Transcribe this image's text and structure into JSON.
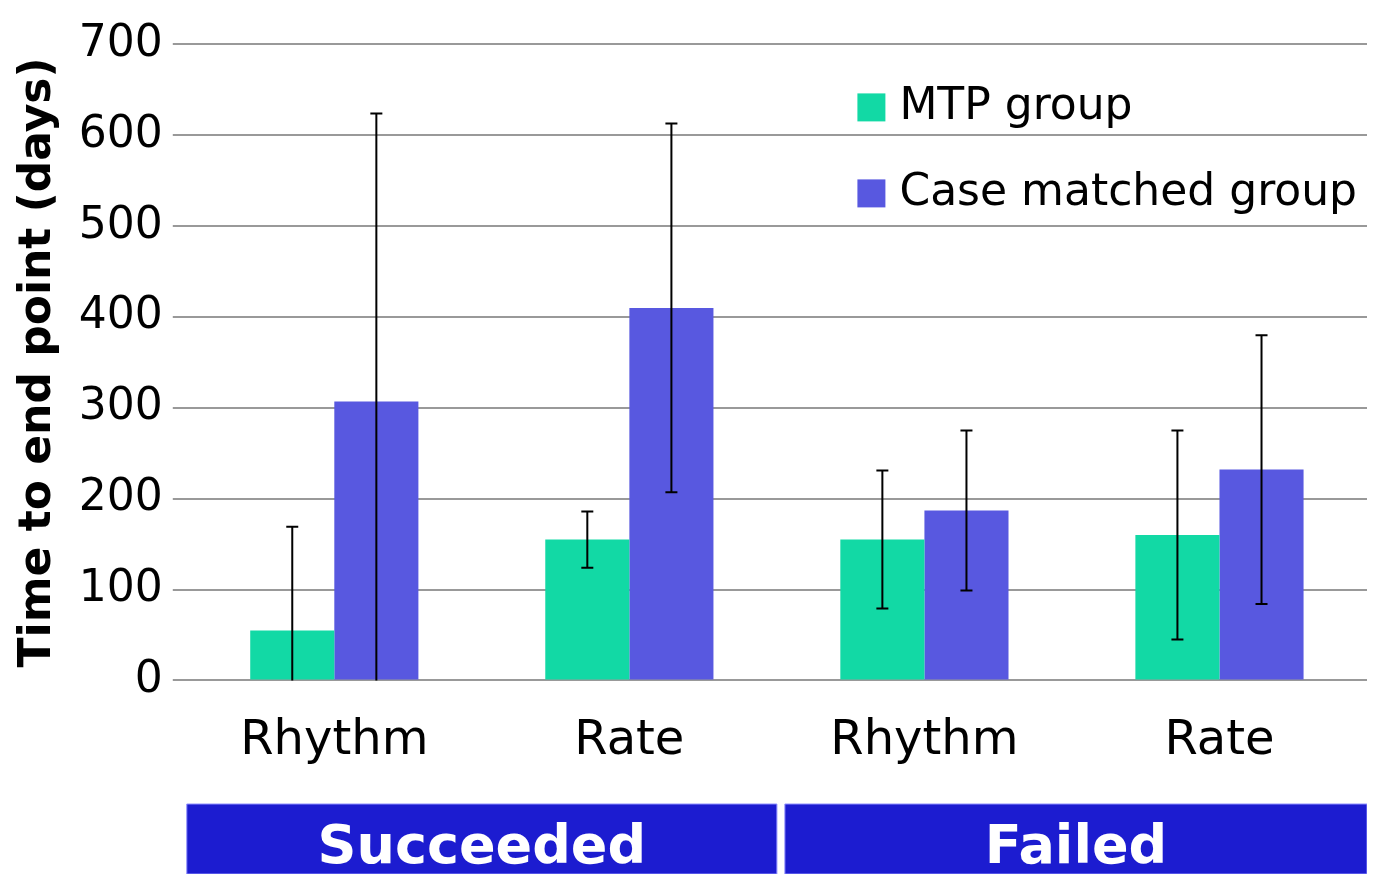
{
  "chart_data": {
    "type": "bar",
    "ylabel": "Time to end point (days)",
    "categories": [
      "Rhythm",
      "Rate",
      "Rhythm",
      "Rate"
    ],
    "series": [
      {
        "name": "MTP group",
        "color": "#12d9a5",
        "values": [
          55,
          155,
          155,
          160
        ],
        "errors": [
          [
            0,
            169
          ],
          31,
          76,
          115
        ]
      },
      {
        "name": "Case matched group",
        "color": "#5858e0",
        "values": [
          307,
          410,
          187,
          232
        ],
        "errors": [
          [
            0,
            624
          ],
          203,
          88,
          148
        ]
      }
    ],
    "ylim": [
      0,
      700
    ],
    "yticks": [
      0,
      100,
      200,
      300,
      400,
      500,
      600,
      700
    ],
    "grid": "y",
    "legend": "top right",
    "annotations": [
      "Succeeded",
      "Failed"
    ]
  }
}
